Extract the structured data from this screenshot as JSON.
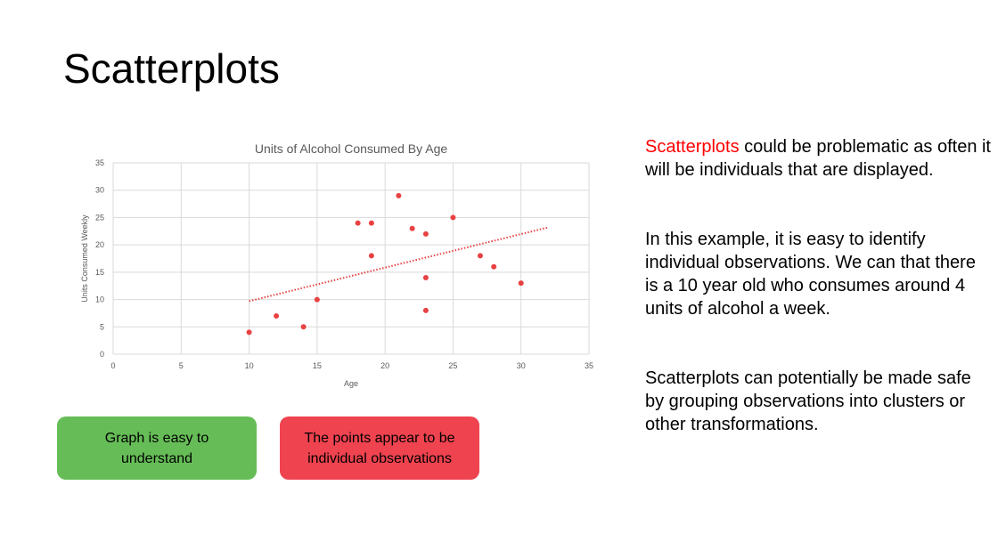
{
  "slide": {
    "title": "Scatterplots"
  },
  "chart_data": {
    "type": "scatter",
    "title": "Units of Alcohol Consumed By Age",
    "xlabel": "Age",
    "ylabel": "Units Consumed Weekly",
    "xlim": [
      0,
      35
    ],
    "ylim": [
      0,
      35
    ],
    "xticks": [
      0,
      5,
      10,
      15,
      20,
      25,
      30,
      35
    ],
    "yticks": [
      0,
      5,
      10,
      15,
      20,
      25,
      30,
      35
    ],
    "grid": true,
    "series": [
      {
        "points": [
          {
            "x": 10,
            "y": 4
          },
          {
            "x": 12,
            "y": 7
          },
          {
            "x": 14,
            "y": 5
          },
          {
            "x": 15,
            "y": 10
          },
          {
            "x": 18,
            "y": 24
          },
          {
            "x": 19,
            "y": 24
          },
          {
            "x": 19,
            "y": 18
          },
          {
            "x": 21,
            "y": 29
          },
          {
            "x": 22,
            "y": 23
          },
          {
            "x": 23,
            "y": 22
          },
          {
            "x": 23,
            "y": 14
          },
          {
            "x": 23,
            "y": 8
          },
          {
            "x": 25,
            "y": 25
          },
          {
            "x": 27,
            "y": 18
          },
          {
            "x": 28,
            "y": 16
          },
          {
            "x": 30,
            "y": 13
          }
        ],
        "color": "#e84142"
      }
    ],
    "trendline": {
      "type": "linear",
      "x": [
        10,
        32
      ],
      "y": [
        9.7,
        23.2
      ],
      "style": "dotted",
      "color": "#e84142"
    }
  },
  "callouts": {
    "pro": {
      "text": "Graph is easy to understand",
      "color": "#66bd57"
    },
    "con": {
      "text": "The points appear to be individual observations",
      "color": "#ef434f"
    }
  },
  "side_text": {
    "p1_highlight": "Scatterplots",
    "p1_rest": " could be problematic as often it will be individuals that are displayed.",
    "p2": "In this example, it is easy to identify individual observations. We can that there is a 10 year old who consumes around 4 units of alcohol a week.",
    "p3": "Scatterplots can potentially be made safe by grouping observations into clusters or other transformations.",
    "highlight_color": "#ff0000"
  }
}
